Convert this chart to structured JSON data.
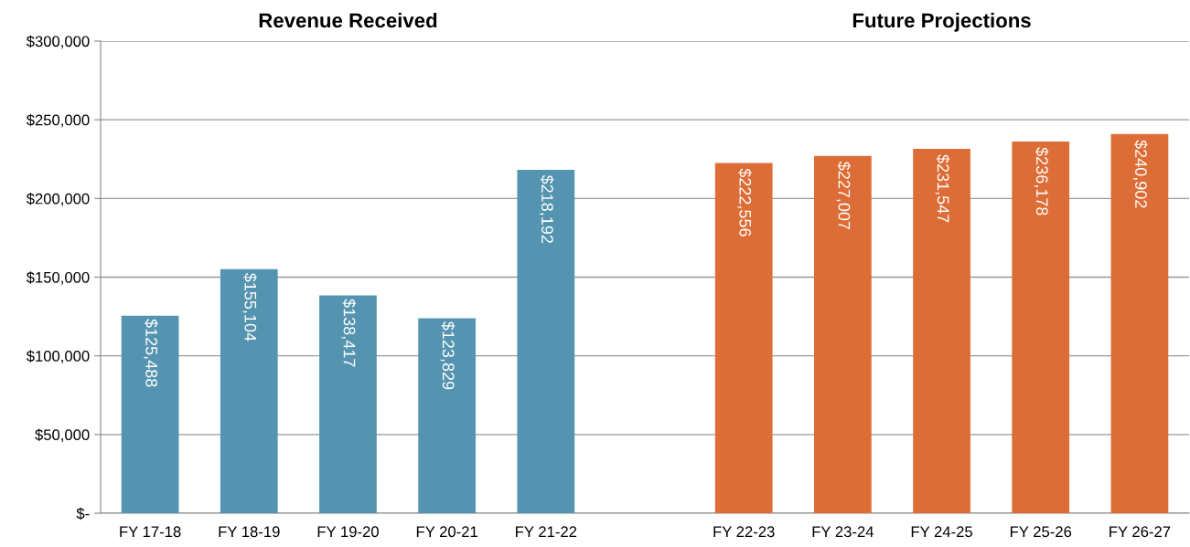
{
  "chart_data": {
    "type": "bar",
    "categories": [
      "FY 17-18",
      "FY 18-19",
      "FY 19-20",
      "FY 20-21",
      "FY 21-22",
      null,
      "FY 22-23",
      "FY 23-24",
      "FY 24-25",
      "FY 25-26",
      "FY 26-27"
    ],
    "series": [
      {
        "color": "#5594b0",
        "values": [
          125488,
          155104,
          138417,
          123829,
          218192,
          null,
          null,
          null,
          null,
          null,
          null
        ],
        "value_labels": [
          "$125,488",
          "$155,104",
          "$138,417",
          "$123,829",
          "$218,192",
          null,
          null,
          null,
          null,
          null,
          null
        ]
      },
      {
        "color": "#dd6d36",
        "values": [
          null,
          null,
          null,
          null,
          null,
          null,
          222556,
          227007,
          231547,
          236178,
          240902
        ],
        "value_labels": [
          null,
          null,
          null,
          null,
          null,
          null,
          "$222,556",
          "$227,007",
          "$231,547",
          "$236,178",
          "$240,902"
        ]
      }
    ],
    "ylim": [
      0,
      300000
    ],
    "yticks": [
      {
        "value": 0,
        "label": "$-"
      },
      {
        "value": 50000,
        "label": "$50,000"
      },
      {
        "value": 100000,
        "label": "$100,000"
      },
      {
        "value": 150000,
        "label": "$150,000"
      },
      {
        "value": 200000,
        "label": "$200,000"
      },
      {
        "value": 250000,
        "label": "$250,000"
      },
      {
        "value": 300000,
        "label": "$300,000"
      }
    ],
    "annotations": [
      "Revenue Received",
      "Future Projections"
    ],
    "grid": "y"
  }
}
